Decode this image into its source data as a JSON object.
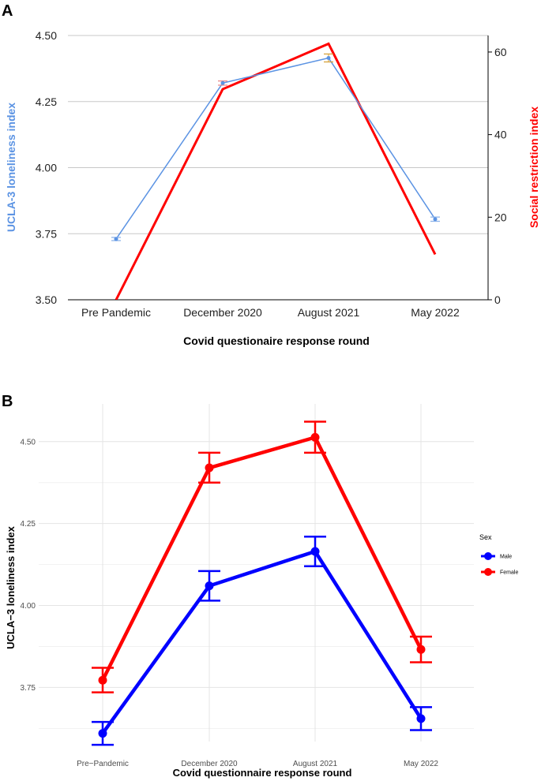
{
  "chart_data": [
    {
      "panel": "A",
      "type": "line",
      "title": "",
      "xlabel": "Covid questionaire response round",
      "ylabel_left": "UCLA-3 loneliness index",
      "ylabel_right": "Social restriction index",
      "categories": [
        "Pre Pandemic",
        "December 2020",
        "August 2021",
        "May 2022"
      ],
      "ylim_left": [
        3.5,
        4.5
      ],
      "yticks_left": [
        "3.50",
        "3.75",
        "4.00",
        "4.25",
        "4.50"
      ],
      "ylim_right": [
        0,
        64
      ],
      "yticks_right": [
        "0",
        "20",
        "40",
        "60"
      ],
      "series": [
        {
          "name": "UCLA-3 loneliness index",
          "axis": "left",
          "color": "#5b93e3",
          "values": [
            3.73,
            4.32,
            4.415,
            3.805
          ],
          "err": [
            0.006,
            0.008,
            0.015,
            0.008
          ]
        },
        {
          "name": "Social restriction index",
          "axis": "right",
          "color": "#ff0000",
          "values": [
            0,
            51,
            62,
            11
          ]
        }
      ],
      "grid": true
    },
    {
      "panel": "B",
      "type": "line",
      "title": "",
      "xlabel": "Covid questionnaire response round",
      "ylabel": "UCLA−3 loneliness index",
      "categories": [
        "Pre−Pandemic",
        "December 2020",
        "August 2021",
        "May 2022"
      ],
      "ylim": [
        3.585,
        4.615
      ],
      "yticks": [
        "3.75",
        "4.00",
        "4.25",
        "4.50"
      ],
      "legend_title": "Sex",
      "legend_position": "right",
      "series": [
        {
          "name": "Male",
          "color": "#0000ff",
          "values": [
            3.61,
            4.06,
            4.165,
            3.655
          ],
          "lower": [
            3.575,
            4.015,
            4.12,
            3.62
          ],
          "upper": [
            3.645,
            4.105,
            4.21,
            3.69
          ]
        },
        {
          "name": "Female",
          "color": "#ff0000",
          "values": [
            3.772,
            4.42,
            4.513,
            3.866
          ],
          "lower": [
            3.735,
            4.375,
            4.466,
            3.827
          ],
          "upper": [
            3.81,
            4.466,
            4.561,
            3.905
          ]
        }
      ],
      "grid": true
    }
  ]
}
